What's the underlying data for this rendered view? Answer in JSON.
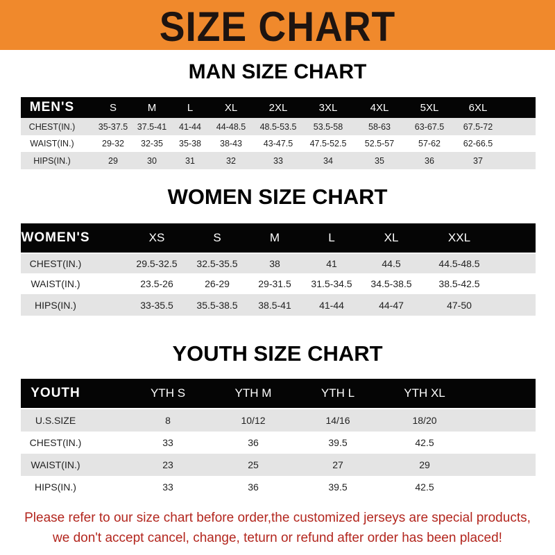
{
  "banner": {
    "title": "SIZE CHART",
    "color": "#f0892c"
  },
  "men": {
    "title": "MAN SIZE CHART",
    "header": [
      "MEN'S",
      "S",
      "M",
      "L",
      "XL",
      "2XL",
      "3XL",
      "4XL",
      "5XL",
      "6XL"
    ],
    "rows": [
      [
        "CHEST(IN.)",
        "35-37.5",
        "37.5-41",
        "41-44",
        "44-48.5",
        "48.5-53.5",
        "53.5-58",
        "58-63",
        "63-67.5",
        "67.5-72"
      ],
      [
        "WAIST(IN.)",
        "29-32",
        "32-35",
        "35-38",
        "38-43",
        "43-47.5",
        "47.5-52.5",
        "52.5-57",
        "57-62",
        "62-66.5"
      ],
      [
        "HIPS(IN.)",
        "29",
        "30",
        "31",
        "32",
        "33",
        "34",
        "35",
        "36",
        "37"
      ]
    ]
  },
  "women": {
    "title": "WOMEN SIZE CHART",
    "header": [
      "WOMEN'S",
      "XS",
      "S",
      "M",
      "L",
      "XL",
      "XXL"
    ],
    "rows": [
      [
        "CHEST(IN.)",
        "29.5-32.5",
        "32.5-35.5",
        "38",
        "41",
        "44.5",
        "44.5-48.5"
      ],
      [
        "WAIST(IN.)",
        "23.5-26",
        "26-29",
        "29-31.5",
        "31.5-34.5",
        "34.5-38.5",
        "38.5-42.5"
      ],
      [
        "HIPS(IN.)",
        "33-35.5",
        "35.5-38.5",
        "38.5-41",
        "41-44",
        "44-47",
        "47-50"
      ]
    ]
  },
  "youth": {
    "title": "YOUTH SIZE CHART",
    "header": [
      "YOUTH",
      "YTH S",
      "YTH M",
      "YTH L",
      "YTH XL"
    ],
    "rows": [
      [
        "U.S.SIZE",
        "8",
        "10/12",
        "14/16",
        "18/20"
      ],
      [
        "CHEST(IN.)",
        "33",
        "36",
        "39.5",
        "42.5"
      ],
      [
        "WAIST(IN.)",
        "23",
        "25",
        "27",
        "29"
      ],
      [
        "HIPS(IN.)",
        "33",
        "36",
        "39.5",
        "42.5"
      ]
    ]
  },
  "footer": {
    "line1": "Please refer to our size chart before order,the customized jerseys are special products,",
    "line2": "we don't accept cancel, change, teturn or refund after order has been placed!",
    "color": "#b3261e"
  }
}
